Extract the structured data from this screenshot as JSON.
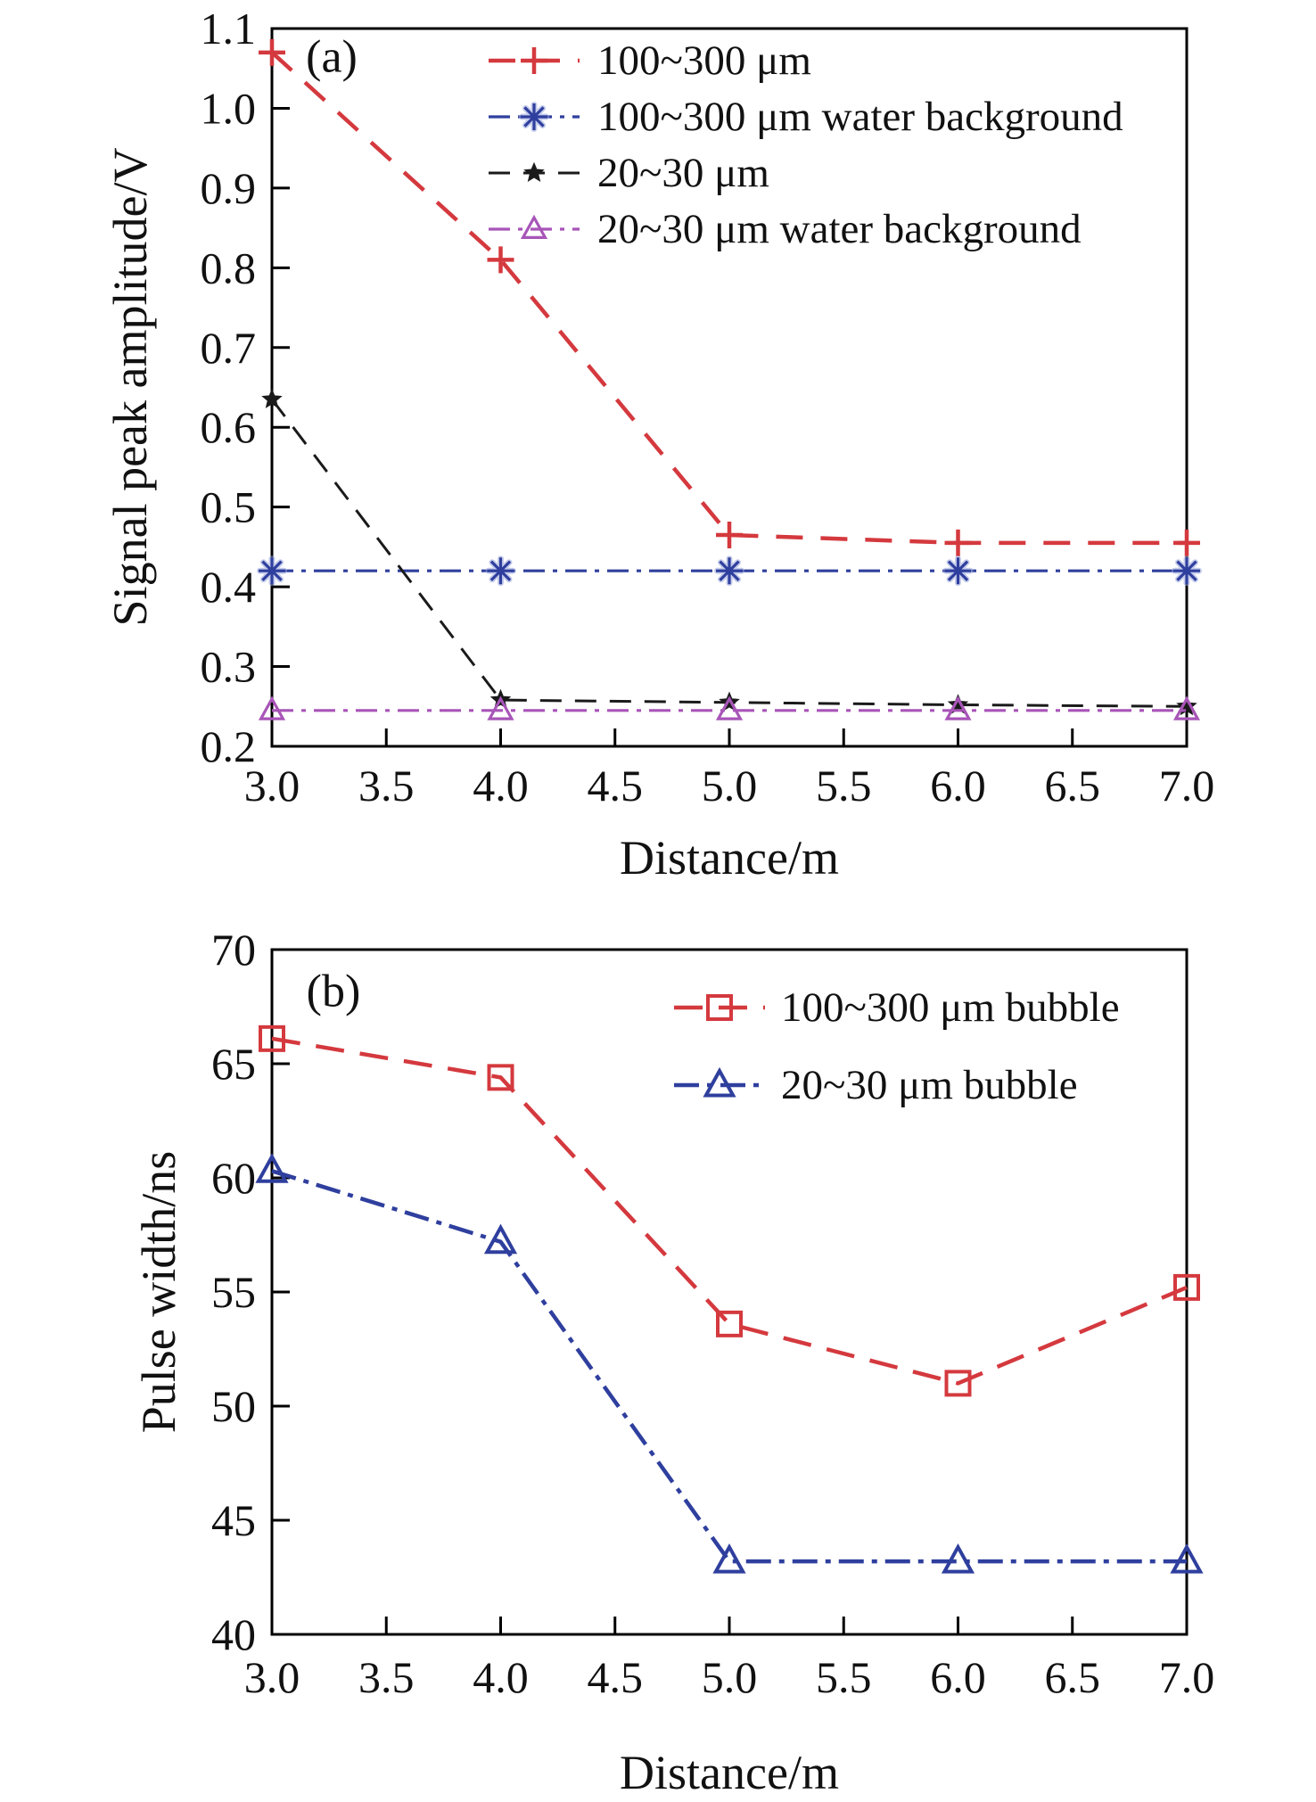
{
  "figure": {
    "background": "#ffffff",
    "axis_color": "#000000",
    "text_color": "#111111"
  },
  "chart_data": [
    {
      "id": "a",
      "type": "line",
      "panel_label": "(a)",
      "xlabel": "Distance/m",
      "ylabel": "Signal peak amplitude/V",
      "x": [
        3.0,
        4.0,
        5.0,
        6.0,
        7.0
      ],
      "xlim": [
        3.0,
        7.0
      ],
      "ylim": [
        0.2,
        1.1
      ],
      "grid": false,
      "legend_position": "top-inside",
      "xtick_labels": [
        "3.0",
        "3.5",
        "4.0",
        "4.5",
        "5.0",
        "5.5",
        "6.0",
        "6.5",
        "7.0"
      ],
      "ytick_labels": [
        "1.1",
        "1.0",
        "0.9",
        "0.8",
        "0.7",
        "0.6",
        "0.5",
        "0.4",
        "0.3",
        "0.2"
      ],
      "series": [
        {
          "name": "100~300 μm",
          "color": "#d4393e",
          "marker": "plus",
          "linestyle": "dashed",
          "values": [
            1.07,
            0.81,
            0.465,
            0.455,
            0.455
          ]
        },
        {
          "name": "100~300 μm water background",
          "color": "#2f3f9e",
          "marker": "asterisk",
          "linestyle": "dashdot",
          "values": [
            0.42,
            0.42,
            0.42,
            0.42,
            0.42
          ]
        },
        {
          "name": "20~30 μm",
          "color": "#1a1a1a",
          "marker": "star",
          "linestyle": "dashed",
          "values": [
            0.635,
            0.258,
            0.255,
            0.252,
            0.25
          ]
        },
        {
          "name": "20~30 μm water background",
          "color": "#a855b8",
          "marker": "triangle",
          "linestyle": "dashdot",
          "values": [
            0.245,
            0.245,
            0.245,
            0.245,
            0.245
          ]
        }
      ]
    },
    {
      "id": "b",
      "type": "line",
      "panel_label": "(b)",
      "xlabel": "Distance/m",
      "ylabel": "Pulse width/ns",
      "x": [
        3.0,
        4.0,
        5.0,
        6.0,
        7.0
      ],
      "xlim": [
        3.0,
        7.0
      ],
      "ylim": [
        40,
        70
      ],
      "grid": false,
      "legend_position": "top-inside",
      "xtick_labels": [
        "3.0",
        "3.5",
        "4.0",
        "4.5",
        "5.0",
        "5.5",
        "6.0",
        "6.5",
        "7.0"
      ],
      "ytick_labels": [
        "70",
        "65",
        "60",
        "55",
        "50",
        "45",
        "40"
      ],
      "series": [
        {
          "name": "100~300 μm bubble",
          "color": "#d4393e",
          "marker": "square",
          "linestyle": "dashed",
          "values": [
            66.1,
            64.4,
            53.6,
            51.0,
            55.2
          ]
        },
        {
          "name": "20~30 μm bubble",
          "color": "#2f3f9e",
          "marker": "triangle",
          "linestyle": "dashdot",
          "values": [
            60.3,
            57.2,
            43.2,
            43.2,
            43.2
          ]
        }
      ]
    }
  ]
}
